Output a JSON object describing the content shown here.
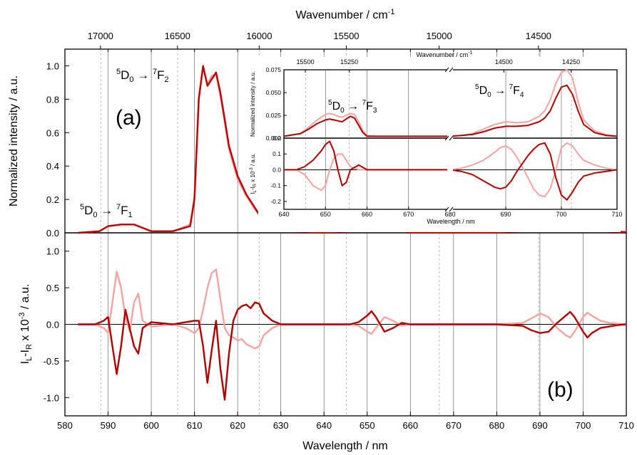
{
  "chart_data": [
    {
      "id": "a",
      "type": "line",
      "panel_label": "(a)",
      "xlabel": "Wavelength / nm",
      "xlim": [
        580,
        710
      ],
      "x_ticks": [
        "580",
        "590",
        "600",
        "610",
        "620",
        "630",
        "640",
        "650",
        "660",
        "670",
        "680",
        "690",
        "700",
        "710"
      ],
      "top_axis_label": "Wavenumber / cm",
      "top_axis_label_sup": "-1",
      "top_ticks": [
        "17000",
        "16500",
        "16000",
        "15500",
        "15000",
        "14500"
      ],
      "ylabel": "Normalized intensity / a.u.",
      "ylim": [
        0,
        1.1
      ],
      "y_ticks": [
        "0.0",
        "0.2",
        "0.4",
        "0.6",
        "0.8",
        "1.0"
      ],
      "annotations": [
        {
          "sup1": "5",
          "base1": "D",
          "sub1": "0",
          "arrow": " → ",
          "sup2": "7",
          "base2": "F",
          "sub2": "1"
        },
        {
          "sup1": "5",
          "base1": "D",
          "sub1": "0",
          "arrow": " → ",
          "sup2": "7",
          "base2": "F",
          "sub2": "2"
        }
      ],
      "series": [
        {
          "color": "#f4a3a3",
          "x": [
            583,
            588,
            590,
            593,
            596,
            598,
            600,
            605,
            609,
            610,
            611,
            612,
            613,
            614,
            615,
            616,
            617,
            618,
            620,
            622,
            624,
            626,
            628,
            630,
            640,
            648,
            651,
            654,
            656,
            660,
            680,
            690,
            695,
            698,
            700,
            701,
            702,
            704,
            706,
            710
          ],
          "y": [
            0.0,
            0.01,
            0.04,
            0.05,
            0.05,
            0.03,
            0.01,
            0.01,
            0.05,
            0.22,
            0.82,
            0.99,
            0.89,
            0.94,
            0.95,
            0.82,
            0.66,
            0.5,
            0.32,
            0.22,
            0.14,
            0.07,
            0.03,
            0.01,
            0.005,
            0.01,
            0.025,
            0.02,
            0.025,
            0.005,
            0.005,
            0.015,
            0.02,
            0.04,
            0.07,
            0.075,
            0.06,
            0.03,
            0.01,
            0.005
          ]
        },
        {
          "color": "#c00000",
          "x": [
            583,
            588,
            590,
            593,
            596,
            598,
            600,
            605,
            609,
            610,
            611,
            612,
            613,
            614,
            615,
            616,
            617,
            618,
            620,
            622,
            624,
            626,
            628,
            630,
            640,
            648,
            651,
            654,
            656,
            660,
            680,
            690,
            695,
            698,
            700,
            701,
            702,
            704,
            706,
            710
          ],
          "y": [
            0.0,
            0.01,
            0.04,
            0.05,
            0.05,
            0.03,
            0.01,
            0.01,
            0.04,
            0.2,
            0.8,
            1.0,
            0.88,
            0.92,
            0.96,
            0.84,
            0.68,
            0.52,
            0.34,
            0.23,
            0.15,
            0.07,
            0.03,
            0.01,
            0.005,
            0.01,
            0.02,
            0.015,
            0.02,
            0.005,
            0.005,
            0.012,
            0.015,
            0.03,
            0.05,
            0.058,
            0.045,
            0.02,
            0.008,
            0.005
          ]
        }
      ]
    },
    {
      "id": "b",
      "type": "line",
      "panel_label": "(b)",
      "xlabel": "Wavelength / nm",
      "xlim": [
        580,
        710
      ],
      "ylabel_parts": {
        "main": "I",
        "sub1": "L",
        "mid": "-I",
        "sub2": "R",
        "tail": " x 10",
        "sup": "-3",
        "end": " / a.u."
      },
      "ylim": [
        -1.25,
        1.25
      ],
      "y_ticks": [
        "-1.0",
        "-0.5",
        "0.0",
        "0.5",
        "1.0"
      ],
      "series": [
        {
          "color": "#f4a3a3",
          "x": [
            583,
            587,
            589,
            590,
            591,
            592,
            593,
            594,
            595,
            596,
            597,
            598,
            600,
            605,
            608,
            610,
            611,
            612,
            613,
            614,
            615,
            616,
            617,
            618,
            619,
            620,
            621,
            622,
            623,
            624,
            625,
            626,
            628,
            630,
            640,
            646,
            648,
            650,
            651,
            652,
            654,
            656,
            658,
            660,
            680,
            686,
            688,
            690,
            692,
            694,
            696,
            697,
            698,
            700,
            701,
            702,
            704,
            706,
            708,
            710
          ],
          "y": [
            0,
            0,
            -0.05,
            -0.12,
            0.3,
            0.72,
            0.5,
            0.1,
            -0.1,
            0.3,
            0.42,
            0.05,
            -0.03,
            0,
            -0.05,
            -0.12,
            -0.05,
            0.2,
            0.5,
            0.7,
            0.75,
            0.35,
            -0.05,
            -0.15,
            -0.18,
            -0.22,
            -0.2,
            -0.27,
            -0.3,
            -0.33,
            -0.3,
            -0.15,
            -0.05,
            0,
            0,
            0,
            -0.02,
            -0.1,
            -0.13,
            -0.05,
            0.1,
            0.05,
            -0.02,
            0,
            0,
            0.02,
            0.08,
            0.15,
            0.1,
            -0.05,
            -0.15,
            -0.18,
            -0.1,
            0.1,
            0.16,
            0.12,
            0.05,
            0.02,
            0.01,
            0
          ]
        },
        {
          "color": "#b00000",
          "x": [
            583,
            587,
            589,
            590,
            591,
            592,
            593,
            594,
            595,
            596,
            597,
            598,
            600,
            605,
            608,
            610,
            611,
            612,
            613,
            614,
            615,
            616,
            617,
            618,
            619,
            620,
            621,
            622,
            623,
            624,
            625,
            626,
            628,
            630,
            640,
            646,
            648,
            650,
            651,
            652,
            654,
            656,
            658,
            660,
            680,
            686,
            688,
            690,
            692,
            694,
            696,
            697,
            698,
            700,
            701,
            702,
            704,
            706,
            708,
            710
          ],
          "y": [
            0,
            0,
            0.05,
            0.1,
            -0.3,
            -0.68,
            -0.3,
            0.2,
            -0.05,
            -0.3,
            -0.4,
            -0.05,
            0.03,
            0,
            0.03,
            0.05,
            0.05,
            -0.3,
            -0.8,
            -0.35,
            0.05,
            -0.6,
            -1.03,
            -0.4,
            0.05,
            0.2,
            0.25,
            0.27,
            0.22,
            0.3,
            0.28,
            0.15,
            0.05,
            0,
            0,
            0,
            0.03,
            0.12,
            0.18,
            0.1,
            -0.1,
            -0.05,
            0.02,
            0,
            0,
            -0.02,
            -0.08,
            -0.12,
            -0.1,
            0.02,
            0.12,
            0.17,
            0.1,
            -0.1,
            -0.18,
            -0.12,
            -0.05,
            -0.03,
            -0.01,
            0
          ]
        }
      ]
    },
    {
      "id": "inset-top",
      "type": "line",
      "xlim_segments": [
        [
          640,
          680
        ],
        [
          680,
          710
        ]
      ],
      "top_axis_label": "Wavenumber / cm",
      "top_axis_label_sup": "-1",
      "top_ticks": [
        "15500",
        "15250",
        "14500",
        "14250"
      ],
      "ylabel": "Normalized intensity / a.u.",
      "ylim": [
        0,
        0.075
      ],
      "y_ticks": [
        "0.000",
        "0.025",
        "0.050",
        "0.075"
      ],
      "annotations": [
        {
          "sup1": "5",
          "base1": "D",
          "sub1": "0",
          "arrow": " → ",
          "sup2": "7",
          "base2": "F",
          "sub2": "3"
        },
        {
          "sup1": "5",
          "base1": "D",
          "sub1": "0",
          "arrow": " → ",
          "sup2": "7",
          "base2": "F",
          "sub2": "4"
        }
      ],
      "series": [
        {
          "color": "#f4a3a3",
          "x": [
            640,
            644,
            646,
            648,
            650,
            651,
            652,
            653,
            654,
            655,
            656,
            657,
            658,
            659,
            660,
            662,
            664,
            666,
            668,
            670,
            672,
            674,
            676,
            678,
            680,
            682,
            684,
            686,
            688,
            690,
            692,
            694,
            696,
            697,
            698,
            699,
            700,
            701,
            702,
            703,
            704,
            706,
            708,
            710
          ],
          "y": [
            0.002,
            0.005,
            0.012,
            0.02,
            0.026,
            0.027,
            0.026,
            0.024,
            0.023,
            0.025,
            0.027,
            0.026,
            0.018,
            0.008,
            0.003,
            0.002,
            0.002,
            0.002,
            0.002,
            0.002,
            0.002,
            0.002,
            0.002,
            0.002,
            0.002,
            0.003,
            0.005,
            0.01,
            0.015,
            0.018,
            0.017,
            0.018,
            0.024,
            0.03,
            0.042,
            0.06,
            0.072,
            0.075,
            0.066,
            0.04,
            0.02,
            0.008,
            0.004,
            0.002
          ]
        },
        {
          "color": "#b00000",
          "x": [
            640,
            644,
            646,
            648,
            650,
            651,
            652,
            653,
            654,
            655,
            656,
            657,
            658,
            659,
            660,
            662,
            664,
            666,
            668,
            670,
            672,
            674,
            676,
            678,
            680,
            682,
            684,
            686,
            688,
            690,
            692,
            694,
            696,
            697,
            698,
            699,
            700,
            701,
            702,
            703,
            704,
            706,
            708,
            710
          ],
          "y": [
            0.002,
            0.005,
            0.01,
            0.016,
            0.02,
            0.021,
            0.02,
            0.019,
            0.018,
            0.021,
            0.024,
            0.022,
            0.014,
            0.006,
            0.002,
            0.002,
            0.002,
            0.002,
            0.002,
            0.002,
            0.002,
            0.002,
            0.002,
            0.002,
            0.002,
            0.003,
            0.004,
            0.007,
            0.011,
            0.013,
            0.013,
            0.014,
            0.018,
            0.022,
            0.03,
            0.044,
            0.056,
            0.058,
            0.048,
            0.03,
            0.015,
            0.006,
            0.003,
            0.002
          ]
        }
      ]
    },
    {
      "id": "inset-bottom",
      "type": "line",
      "xlabel": "Wavelength / nm",
      "xlim_segments": [
        [
          640,
          680
        ],
        [
          680,
          710
        ]
      ],
      "x_ticks": [
        "640",
        "650",
        "660",
        "670",
        "680",
        "690",
        "700",
        "710"
      ],
      "ylabel_parts": {
        "main": "I",
        "sub1": "L",
        "mid": "-I",
        "sub2": "R",
        "tail": " x 10",
        "sup": "-3",
        "end": " / a.u."
      },
      "ylim": [
        -0.25,
        0.2
      ],
      "y_ticks": [
        "0.2",
        "0.1",
        "0.0",
        "-0.1",
        "-0.2"
      ],
      "series": [
        {
          "color": "#f4a3a3",
          "x": [
            640,
            643,
            645,
            647,
            649,
            650,
            651,
            652,
            653,
            654,
            655,
            656,
            658,
            660,
            665,
            670,
            675,
            680,
            682,
            684,
            686,
            688,
            689,
            690,
            691,
            692,
            694,
            695,
            696,
            697,
            698,
            699,
            700,
            701,
            702,
            703,
            704,
            706,
            708,
            710
          ],
          "y": [
            0,
            0,
            -0.03,
            -0.1,
            -0.13,
            -0.1,
            0.0,
            0.07,
            0.1,
            0.1,
            0.06,
            0.02,
            0.0,
            0,
            0,
            0,
            0,
            0,
            0.01,
            0.03,
            0.06,
            0.11,
            0.14,
            0.15,
            0.13,
            0.08,
            -0.05,
            -0.12,
            -0.16,
            -0.17,
            -0.12,
            0.0,
            0.14,
            0.17,
            0.15,
            0.1,
            0.06,
            0.03,
            0.01,
            0
          ]
        },
        {
          "color": "#b00000",
          "x": [
            640,
            643,
            645,
            647,
            649,
            650,
            651,
            652,
            653,
            654,
            655,
            656,
            658,
            660,
            665,
            670,
            675,
            680,
            682,
            684,
            686,
            688,
            689,
            690,
            691,
            692,
            694,
            695,
            696,
            697,
            698,
            699,
            700,
            701,
            702,
            703,
            704,
            706,
            708,
            710
          ],
          "y": [
            0,
            0,
            0.02,
            0.06,
            0.12,
            0.16,
            0.18,
            0.12,
            0.0,
            -0.1,
            -0.08,
            0.0,
            0.03,
            0,
            0,
            0,
            0,
            0,
            -0.01,
            -0.03,
            -0.07,
            -0.11,
            -0.12,
            -0.11,
            -0.07,
            -0.01,
            0.09,
            0.13,
            0.16,
            0.17,
            0.1,
            -0.05,
            -0.16,
            -0.19,
            -0.14,
            -0.08,
            -0.04,
            -0.02,
            -0.01,
            0
          ]
        }
      ]
    }
  ]
}
